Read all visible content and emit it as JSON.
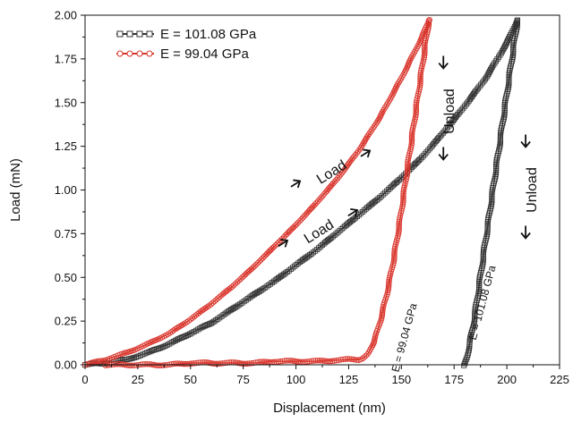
{
  "chart_data": {
    "type": "scatter",
    "xlabel": "Displacement (nm)",
    "ylabel": "Load (mN)",
    "xlim": [
      0,
      225
    ],
    "ylim": [
      0,
      2.0
    ],
    "x_ticks": [
      "0",
      "25",
      "50",
      "75",
      "100",
      "125",
      "150",
      "175",
      "200",
      "225"
    ],
    "y_ticks": [
      "0.00",
      "0.25",
      "0.50",
      "0.75",
      "1.00",
      "1.25",
      "1.50",
      "1.75",
      "2.00"
    ],
    "grid": false,
    "legend_position": "top-left",
    "series": [
      {
        "name": "E = 101.08 GPa",
        "color": "#333333",
        "marker": "square",
        "loading": {
          "x": [
            0,
            10,
            20,
            30,
            40,
            50,
            60,
            70,
            80,
            90,
            100,
            110,
            120,
            130,
            140,
            150,
            160,
            170,
            180,
            190,
            195,
            200,
            203,
            205
          ],
          "y": [
            0,
            0.01,
            0.03,
            0.07,
            0.12,
            0.18,
            0.24,
            0.32,
            0.4,
            0.48,
            0.57,
            0.66,
            0.76,
            0.86,
            0.96,
            1.07,
            1.19,
            1.33,
            1.48,
            1.64,
            1.74,
            1.84,
            1.92,
            1.97
          ]
        },
        "unloading": {
          "x": [
            205,
            203,
            200,
            197,
            194,
            191,
            188,
            186,
            184,
            182,
            181,
            180
          ],
          "y": [
            1.97,
            1.8,
            1.55,
            1.3,
            1.05,
            0.8,
            0.55,
            0.38,
            0.22,
            0.1,
            0.04,
            0.0
          ]
        }
      },
      {
        "name": "E = 99.04 GPa",
        "color": "#d9342b",
        "marker": "circle",
        "loading": {
          "x": [
            0,
            10,
            20,
            30,
            40,
            50,
            60,
            70,
            80,
            90,
            100,
            110,
            120,
            130,
            140,
            150,
            155,
            160,
            163
          ],
          "y": [
            0,
            0.03,
            0.07,
            0.12,
            0.18,
            0.26,
            0.35,
            0.45,
            0.56,
            0.68,
            0.8,
            0.93,
            1.07,
            1.23,
            1.42,
            1.64,
            1.76,
            1.88,
            1.97
          ]
        },
        "unloading": {
          "x": [
            163,
            161,
            158,
            155,
            152,
            149,
            146,
            143,
            140,
            137,
            134,
            132,
            130,
            125,
            110,
            100,
            90,
            80,
            70,
            60,
            50,
            40,
            30,
            20,
            10
          ],
          "y": [
            1.97,
            1.8,
            1.55,
            1.3,
            1.05,
            0.8,
            0.58,
            0.4,
            0.25,
            0.13,
            0.06,
            0.04,
            0.03,
            0.03,
            0.02,
            0.02,
            0.02,
            0.01,
            0.01,
            0.01,
            0.01,
            0.0,
            0.0,
            0.0,
            0.0
          ]
        }
      }
    ],
    "annotations": [
      {
        "text": "Load",
        "series": 1,
        "x": 118,
        "y": 1.08,
        "arrow": "right",
        "color": "#111111"
      },
      {
        "text": "Load",
        "series": 0,
        "x": 112,
        "y": 0.74,
        "arrow": "right",
        "color": "#111111"
      },
      {
        "text": "Unload",
        "series": 1,
        "x": 175,
        "y": 1.45,
        "arrow": "down",
        "color": "#111111"
      },
      {
        "text": "Unload",
        "series": 0,
        "x": 214,
        "y": 1.0,
        "arrow": "down",
        "color": "#111111"
      },
      {
        "text": "E = 99.04 GPa",
        "x": 153,
        "y": 0.15,
        "rotate": -75,
        "size": "small"
      },
      {
        "text": "E = 101.08 GPa",
        "x": 190,
        "y": 0.35,
        "rotate": -75,
        "size": "small"
      }
    ]
  }
}
